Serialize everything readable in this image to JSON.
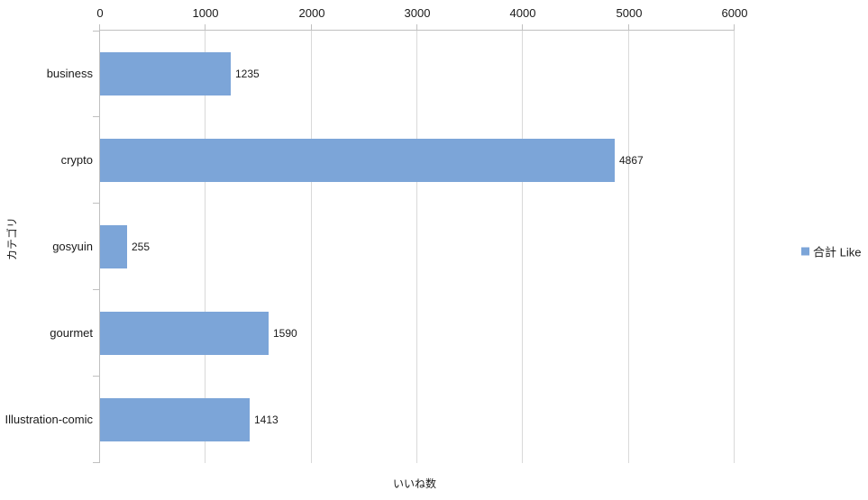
{
  "chart_data": {
    "type": "bar",
    "orientation": "horizontal",
    "title": "",
    "categories": [
      "business",
      "crypto",
      "gosyuin",
      "gourmet",
      "Illustration-comic"
    ],
    "series": [
      {
        "name": "合計 Like",
        "values": [
          1235,
          4867,
          255,
          1590,
          1413
        ]
      }
    ],
    "data_labels": [
      "1235",
      "4867",
      "255",
      "1590",
      "1413"
    ],
    "xlabel": "いいね数",
    "ylabel": "カテゴリ",
    "xlim": [
      0,
      6000
    ],
    "xticks": [
      0,
      1000,
      2000,
      3000,
      4000,
      5000,
      6000
    ],
    "grid": true,
    "legend": {
      "position": "right",
      "entries": [
        "合計 Like"
      ]
    },
    "colors": {
      "bar": "#7ca5d8",
      "gridline": "#d9d9d9",
      "axis_line": "#c0c0c0",
      "text": "#1a1a1a",
      "background": "#ffffff"
    }
  }
}
